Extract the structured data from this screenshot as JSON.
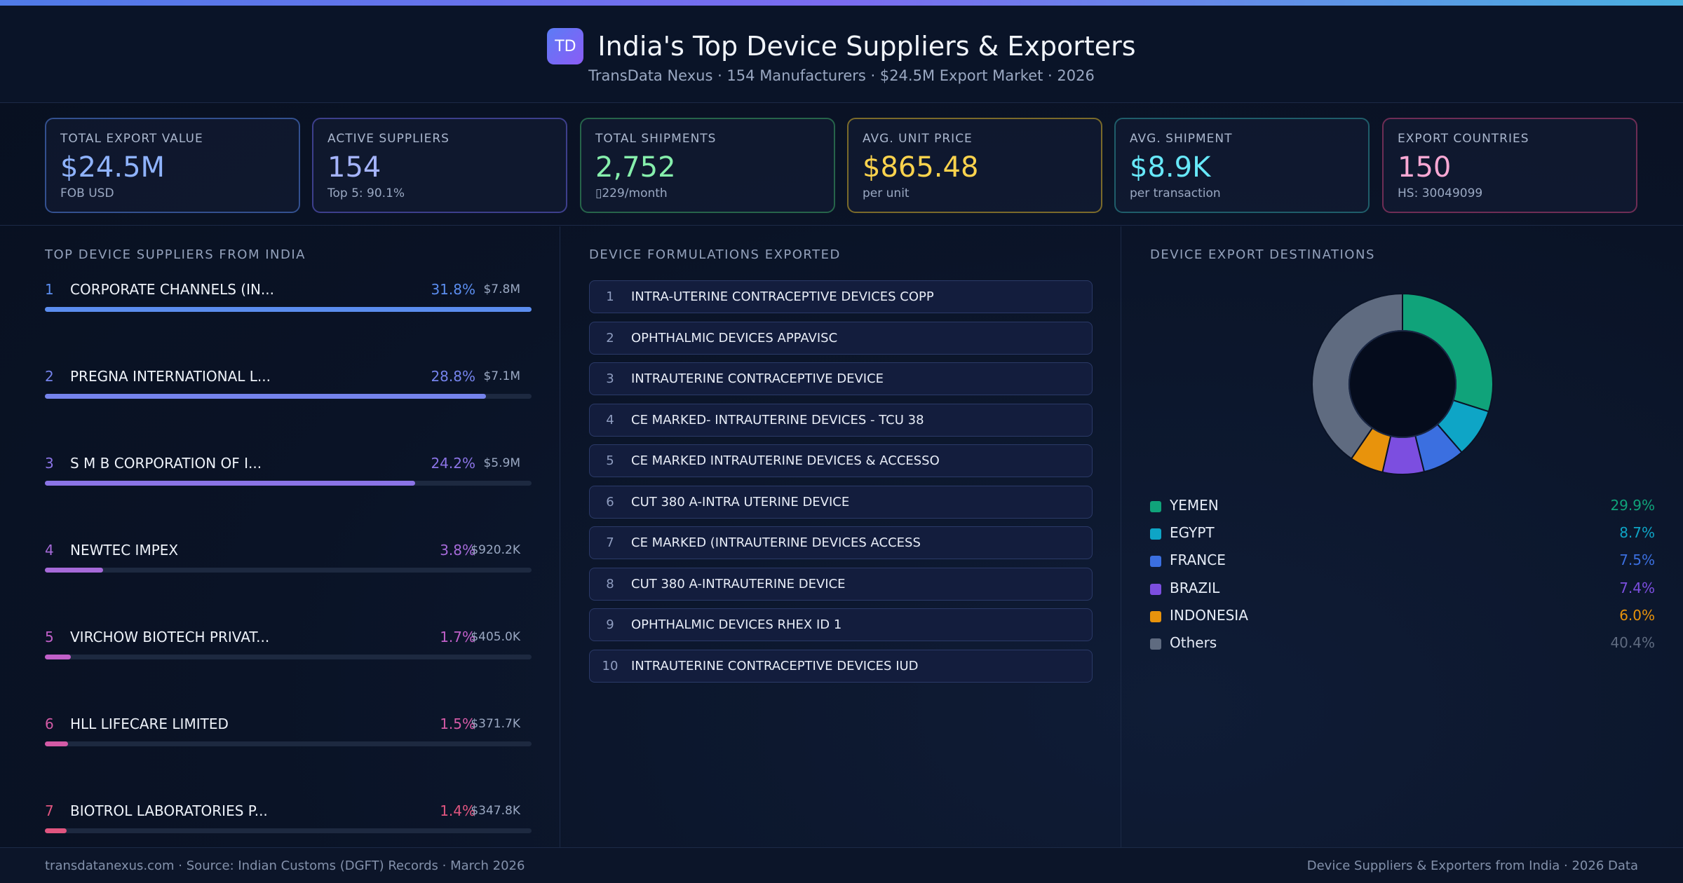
{
  "header": {
    "logo_text": "TD",
    "title": "India's Top Device Suppliers & Exporters",
    "subtitle": "TransData Nexus · 154 Manufacturers · $24.5M Export Market · 2026"
  },
  "kpis": [
    {
      "label": "TOTAL EXPORT VALUE",
      "value": "$24.5M",
      "sub": "FOB USD",
      "color": "#8fb3ff",
      "border": "#33508f"
    },
    {
      "label": "ACTIVE SUPPLIERS",
      "value": "154",
      "sub": "Top 5: 90.1%",
      "color": "#a5b4fc",
      "border": "#3d3f8c"
    },
    {
      "label": "TOTAL SHIPMENTS",
      "value": "2,752",
      "sub": "▯229/month",
      "color": "#86efac",
      "border": "#26644a"
    },
    {
      "label": "AVG. UNIT PRICE",
      "value": "$865.48",
      "sub": "per unit",
      "color": "#fcd34d",
      "border": "#7a6a2a"
    },
    {
      "label": "AVG. SHIPMENT",
      "value": "$8.9K",
      "sub": "per transaction",
      "color": "#67e8f9",
      "border": "#1f5d6a"
    },
    {
      "label": "EXPORT COUNTRIES",
      "value": "150",
      "sub": "HS: 30049099",
      "color": "#f9a8d4",
      "border": "#6e2d55"
    }
  ],
  "suppliers": {
    "title": "TOP DEVICE SUPPLIERS FROM INDIA",
    "items": [
      {
        "rank": "1",
        "name": "CORPORATE CHANNELS (IN...",
        "pct": "31.8%",
        "value": "$7.8M",
        "share": 0.318,
        "color": "#5b8def"
      },
      {
        "rank": "2",
        "name": "PREGNA INTERNATIONAL L...",
        "pct": "28.8%",
        "value": "$7.1M",
        "share": 0.288,
        "color": "#7583ec"
      },
      {
        "rank": "3",
        "name": "S M B CORPORATION OF I...",
        "pct": "24.2%",
        "value": "$5.9M",
        "share": 0.242,
        "color": "#8b74e6"
      },
      {
        "rank": "4",
        "name": "NEWTEC IMPEX",
        "pct": "3.8%",
        "value": "$920.2K",
        "share": 0.038,
        "color": "#a66ad9"
      },
      {
        "rank": "5",
        "name": "VIRCHOW BIOTECH PRIVAT...",
        "pct": "1.7%",
        "value": "$405.0K",
        "share": 0.017,
        "color": "#c160c9"
      },
      {
        "rank": "6",
        "name": "HLL LIFECARE LIMITED",
        "pct": "1.5%",
        "value": "$371.7K",
        "share": 0.015,
        "color": "#d45aa6"
      },
      {
        "rank": "7",
        "name": "BIOTROL LABORATORIES P...",
        "pct": "1.4%",
        "value": "$347.8K",
        "share": 0.014,
        "color": "#e0557f"
      }
    ]
  },
  "formulations": {
    "title": "DEVICE FORMULATIONS EXPORTED",
    "items": [
      {
        "num": "1",
        "name": "INTRA-UTERINE CONTRACEPTIVE DEVICES COPP"
      },
      {
        "num": "2",
        "name": "OPHTHALMIC DEVICES APPAVISC"
      },
      {
        "num": "3",
        "name": "INTRAUTERINE CONTRACEPTIVE DEVICE"
      },
      {
        "num": "4",
        "name": "CE MARKED- INTRAUTERINE DEVICES - TCU 38"
      },
      {
        "num": "5",
        "name": "CE MARKED INTRAUTERINE DEVICES & ACCESSO"
      },
      {
        "num": "6",
        "name": "CUT 380 A-INTRA UTERINE DEVICE"
      },
      {
        "num": "7",
        "name": "CE MARKED (INTRAUTERINE DEVICES ACCESS"
      },
      {
        "num": "8",
        "name": "CUT 380 A-INTRAUTERINE DEVICE"
      },
      {
        "num": "9",
        "name": "OPHTHALMIC DEVICES RHEX ID 1"
      },
      {
        "num": "10",
        "name": "INTRAUTERINE CONTRACEPTIVE DEVICES IUD"
      }
    ]
  },
  "destinations": {
    "title": "DEVICE EXPORT DESTINATIONS",
    "items": [
      {
        "name": "YEMEN",
        "pct": "29.9%",
        "share": 29.9,
        "color": "#10a37a"
      },
      {
        "name": "EGYPT",
        "pct": "8.7%",
        "share": 8.7,
        "color": "#0ea5c6"
      },
      {
        "name": "FRANCE",
        "pct": "7.5%",
        "share": 7.5,
        "color": "#3b6fe0"
      },
      {
        "name": "BRAZIL",
        "pct": "7.4%",
        "share": 7.4,
        "color": "#7c4ee0"
      },
      {
        "name": "INDONESIA",
        "pct": "6.0%",
        "share": 6.0,
        "color": "#e8930c"
      },
      {
        "name": "Others",
        "pct": "40.4%",
        "share": 40.4,
        "color": "#5f6b80"
      }
    ]
  },
  "footer": {
    "left": "transdatanexus.com · Source: Indian Customs (DGFT) Records · March 2026",
    "right": "Device Suppliers & Exporters from India · 2026 Data"
  }
}
